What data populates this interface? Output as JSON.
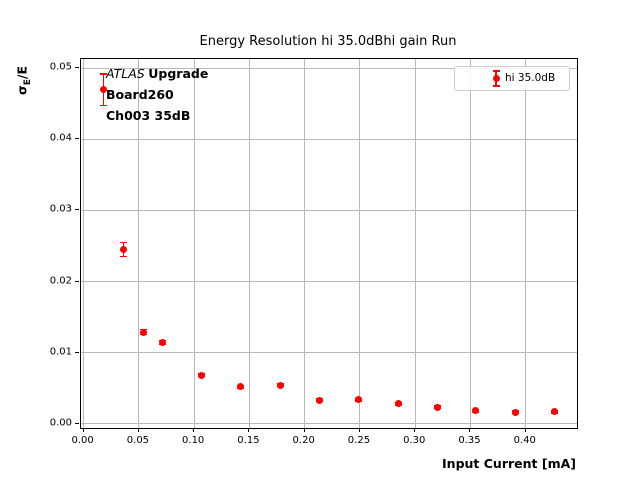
{
  "figure": {
    "title": "Energy Resolution hi 35.0dBhi gain Run",
    "xlabel": "Input Current [mA]",
    "ylabel": {
      "sigma": "σ",
      "sub": "E",
      "rest": "/E"
    },
    "annotation": {
      "line1_italic": "ATLAS",
      "line1_bold": "Upgrade",
      "line2": "Board260",
      "line3": "Ch003 35dB"
    },
    "legend": {
      "label": "hi 35.0dB"
    }
  },
  "colors": {
    "series": "#ff0000",
    "grid": "#b8b8b8",
    "spine": "#000000",
    "text": "#000000",
    "legend_border": "#cccccc",
    "background": "#ffffff"
  },
  "chart_data": {
    "type": "scatter",
    "title": "Energy Resolution hi 35.0dBhi gain Run",
    "xlabel": "Input Current [mA]",
    "ylabel": "σ_E/E",
    "grid": true,
    "legend_position": "upper right",
    "xlim": [
      -0.0024,
      0.4464
    ],
    "ylim": [
      -0.0006,
      0.0513
    ],
    "xticks": [
      0.0,
      0.05,
      0.1,
      0.15,
      0.2,
      0.25,
      0.3,
      0.35,
      0.4
    ],
    "yticks": [
      0.0,
      0.01,
      0.02,
      0.03,
      0.04,
      0.05
    ],
    "tick_decimals": 2,
    "series": [
      {
        "name": "hi 35.0dB",
        "color": "#ff0000",
        "marker": "o",
        "linestyle": "none",
        "x": [
          0.018,
          0.036,
          0.054,
          0.071,
          0.107,
          0.142,
          0.178,
          0.213,
          0.249,
          0.285,
          0.32,
          0.355,
          0.391,
          0.426
        ],
        "y": [
          0.047,
          0.0245,
          0.0129,
          0.0114,
          0.0068,
          0.0052,
          0.0054,
          0.0033,
          0.0034,
          0.0028,
          0.0023,
          0.0018,
          0.0016,
          0.0017
        ],
        "yerr": [
          0.0022,
          0.001,
          0.0004,
          0.0003,
          0.0002,
          0.0002,
          0.0002,
          0.0002,
          0.0002,
          0.0002,
          0.0002,
          0.0002,
          0.0002,
          0.0002
        ]
      }
    ]
  }
}
